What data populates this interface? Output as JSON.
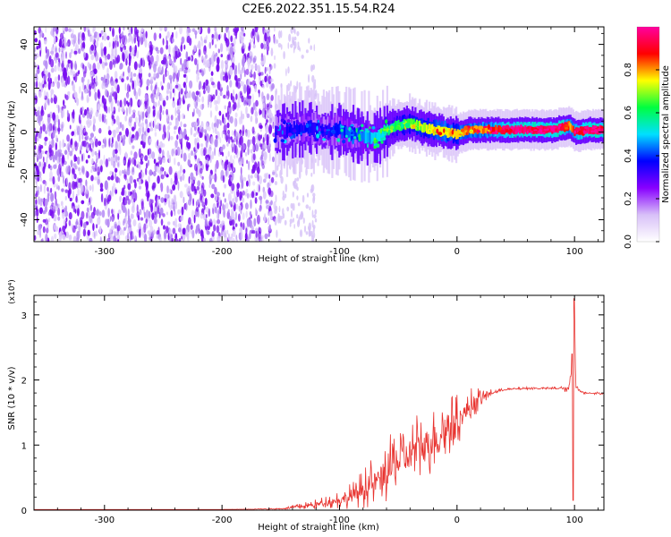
{
  "title": "C2E6.2022.351.15.54.R24",
  "colors": {
    "snr_line": "#e8332f",
    "spectrogram_background": "#ffffff",
    "colormap": [
      "#ffffff",
      "#d8c0f8",
      "#8800ff",
      "#0000ff",
      "#00e0ff",
      "#00ff40",
      "#ffff00",
      "#ff0000",
      "#ff00a0"
    ]
  },
  "chart_data": [
    {
      "type": "heatmap",
      "xlabel": "Height of straight line (km)",
      "ylabel": "Frequency (Hz)",
      "xlim": [
        -360,
        125
      ],
      "ylim": [
        -50,
        48
      ],
      "x_ticks": [
        -300,
        -200,
        -100,
        0,
        100
      ],
      "y_ticks": [
        -40,
        -20,
        0,
        20,
        40
      ],
      "grid": false,
      "noise_region_x": [
        -360,
        -155
      ],
      "signal_band_frequency": 0,
      "colorbar": {
        "label": "Normalized spectral amplitude",
        "range": [
          0.0,
          1.0
        ],
        "ticks": [
          "0.0",
          "0.2",
          "0.4",
          "0.6",
          "0.8"
        ]
      },
      "ridge": {
        "x": [
          -155,
          -140,
          -125,
          -110,
          -100,
          -90,
          -80,
          -70,
          -60,
          -50,
          -40,
          -30,
          -20,
          -10,
          0,
          10,
          20,
          30,
          40,
          50,
          60,
          70,
          80,
          90,
          95,
          100,
          110,
          125
        ],
        "freq": [
          0,
          1,
          2,
          0,
          1,
          -1,
          -2,
          -3,
          1,
          3,
          4,
          2,
          1,
          0,
          -1,
          1,
          1,
          1,
          1,
          1,
          1,
          1,
          1,
          2,
          3,
          0,
          1,
          1
        ],
        "amplitude": [
          0.3,
          0.35,
          0.35,
          0.35,
          0.4,
          0.4,
          0.45,
          0.5,
          0.55,
          0.6,
          0.65,
          0.7,
          0.75,
          0.75,
          0.75,
          0.8,
          0.8,
          0.85,
          0.9,
          0.95,
          0.95,
          0.95,
          0.95,
          0.95,
          0.8,
          0.9,
          0.95,
          0.95
        ]
      }
    },
    {
      "type": "line",
      "xlabel": "Height of straight line (km)",
      "ylabel": "SNR (10 * v/v)",
      "yscale_label": "(x10⁴)",
      "xlim": [
        -360,
        125
      ],
      "ylim": [
        0,
        3.3
      ],
      "x_ticks": [
        -300,
        -200,
        -100,
        0,
        100
      ],
      "y_ticks": [
        0,
        1,
        2,
        3
      ],
      "grid": false,
      "series": [
        {
          "x": [
            -360,
            -300,
            -200,
            -150,
            -135,
            -120,
            -110,
            -100,
            -90,
            -80,
            -70,
            -60,
            -50,
            -40,
            -30,
            -20,
            -10,
            0,
            10,
            20,
            30,
            40,
            50,
            60,
            70,
            80,
            90,
            95,
            98,
            99,
            100,
            101,
            105,
            110,
            125
          ],
          "y": [
            0.01,
            0.01,
            0.01,
            0.02,
            0.05,
            0.08,
            0.12,
            0.15,
            0.2,
            0.3,
            0.4,
            0.55,
            0.7,
            0.85,
            0.95,
            1.05,
            1.2,
            1.35,
            1.55,
            1.72,
            1.8,
            1.85,
            1.86,
            1.87,
            1.87,
            1.87,
            1.87,
            1.85,
            2.2,
            0.15,
            3.2,
            1.9,
            1.82,
            1.8,
            1.79
          ],
          "noise_amplitude": [
            0.0,
            0.0,
            0.0,
            0.01,
            0.04,
            0.08,
            0.1,
            0.15,
            0.2,
            0.3,
            0.4,
            0.5,
            0.55,
            0.55,
            0.55,
            0.55,
            0.5,
            0.4,
            0.3,
            0.15,
            0.05,
            0.02,
            0.02,
            0.02,
            0.02,
            0.02,
            0.03,
            0.1,
            0.0,
            0.0,
            0.0,
            0.05,
            0.03,
            0.02,
            0.02
          ]
        }
      ]
    }
  ]
}
